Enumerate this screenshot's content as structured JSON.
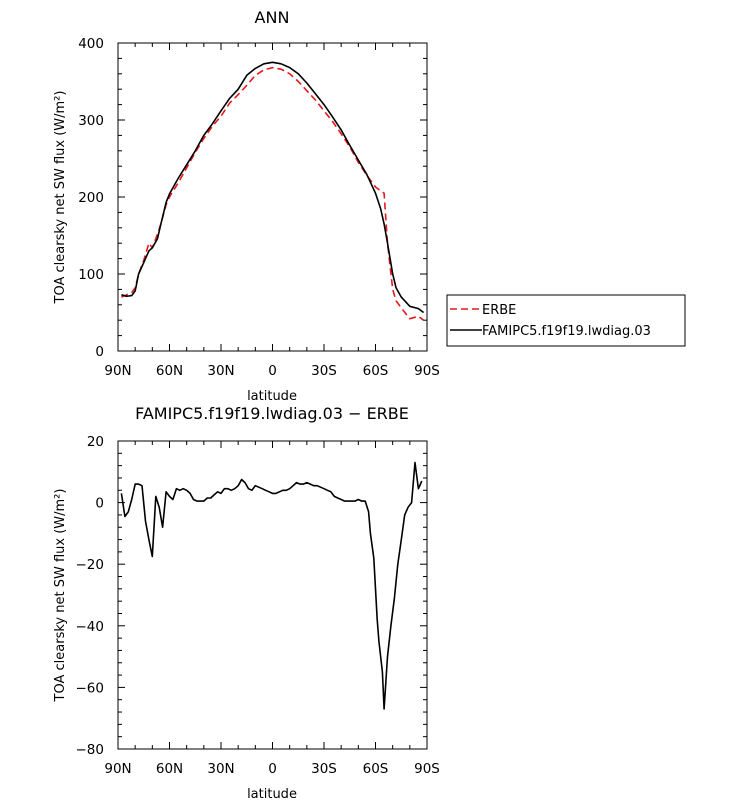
{
  "chart_data": [
    {
      "type": "line",
      "title": "ANN",
      "xlabel": "latitude",
      "ylabel": "TOA clearsky net SW flux (W/m²)",
      "xlim": [
        90,
        -90
      ],
      "ylim": [
        0,
        400
      ],
      "x_ticks": [
        "90N",
        "60N",
        "30N",
        "0",
        "30S",
        "60S",
        "90S"
      ],
      "y_ticks": [
        "0",
        "100",
        "200",
        "300",
        "400"
      ],
      "legend": "outside-right",
      "series": [
        {
          "name": "ERBE",
          "color": "#e41a1c",
          "style": "dashed",
          "x": [
            88,
            85,
            82,
            80,
            78,
            75,
            72,
            70,
            67,
            65,
            62,
            60,
            55,
            50,
            45,
            40,
            35,
            30,
            25,
            20,
            15,
            10,
            5,
            0,
            -5,
            -10,
            -15,
            -20,
            -25,
            -30,
            -35,
            -40,
            -45,
            -50,
            -55,
            -60,
            -63,
            -65,
            -67,
            -70,
            -72,
            -75,
            -80,
            -85,
            -88
          ],
          "y": [
            70,
            73,
            76,
            82,
            100,
            118,
            140,
            134,
            152,
            165,
            190,
            200,
            218,
            238,
            258,
            276,
            292,
            305,
            322,
            333,
            345,
            358,
            365,
            368,
            366,
            360,
            350,
            338,
            326,
            312,
            298,
            282,
            265,
            245,
            228,
            213,
            208,
            205,
            140,
            80,
            65,
            56,
            42,
            45,
            40
          ]
        },
        {
          "name": "FAMIPC5.f19f19.lwdiag.03",
          "color": "#000000",
          "style": "solid",
          "x": [
            88,
            85,
            82,
            80,
            78,
            75,
            72,
            70,
            67,
            65,
            62,
            60,
            55,
            50,
            45,
            40,
            35,
            30,
            25,
            20,
            15,
            10,
            5,
            0,
            -5,
            -10,
            -15,
            -20,
            -25,
            -30,
            -35,
            -40,
            -45,
            -50,
            -55,
            -60,
            -63,
            -65,
            -67,
            -70,
            -72,
            -75,
            -80,
            -85,
            -88
          ],
          "y": [
            73,
            71,
            72,
            78,
            100,
            115,
            130,
            134,
            146,
            165,
            193,
            204,
            224,
            242,
            260,
            280,
            295,
            312,
            328,
            340,
            358,
            367,
            373,
            375,
            373,
            368,
            360,
            348,
            334,
            320,
            304,
            287,
            267,
            248,
            229,
            205,
            185,
            165,
            140,
            100,
            82,
            70,
            58,
            55,
            50
          ]
        }
      ]
    },
    {
      "type": "line",
      "title": "FAMIPC5.f19f19.lwdiag.03 − ERBE",
      "xlabel": "latitude",
      "ylabel": "TOA clearsky net SW flux (W/m²)",
      "xlim": [
        90,
        -90
      ],
      "ylim": [
        -80,
        20
      ],
      "x_ticks": [
        "90N",
        "60N",
        "30N",
        "0",
        "30S",
        "60S",
        "90S"
      ],
      "y_ticks": [
        "−80",
        "−60",
        "−40",
        "−20",
        "0",
        "20"
      ],
      "series": [
        {
          "color": "#000000",
          "style": "solid",
          "x": [
            88,
            86,
            84,
            82,
            80,
            78,
            76,
            74,
            72,
            70,
            68,
            66,
            64,
            62,
            60,
            58,
            56,
            54,
            52,
            50,
            48,
            46,
            44,
            42,
            40,
            38,
            36,
            34,
            32,
            30,
            28,
            26,
            24,
            22,
            20,
            18,
            16,
            14,
            12,
            10,
            8,
            6,
            4,
            2,
            0,
            -2,
            -4,
            -6,
            -8,
            -10,
            -12,
            -14,
            -16,
            -18,
            -20,
            -22,
            -24,
            -26,
            -28,
            -30,
            -32,
            -34,
            -36,
            -38,
            -40,
            -42,
            -44,
            -46,
            -48,
            -50,
            -52,
            -54,
            -56,
            -57,
            -59,
            -61,
            -62,
            -64,
            -65,
            -67,
            -69,
            -71,
            -73,
            -75,
            -77,
            -79,
            -81,
            -83,
            -85,
            -87
          ],
          "y": [
            3,
            -4.5,
            -3,
            1,
            6,
            6,
            5.5,
            -6,
            -12,
            -17.5,
            2,
            -1.5,
            -8,
            3.5,
            2,
            1,
            4.5,
            4,
            4.5,
            4,
            3,
            1,
            0.5,
            0.5,
            0.5,
            1.5,
            1.5,
            2.5,
            3.5,
            3,
            4.5,
            4.5,
            4,
            4.5,
            5.5,
            7.5,
            6.5,
            4.5,
            4,
            5.5,
            5,
            4.5,
            4,
            3.5,
            3,
            3,
            3.5,
            4,
            4,
            4.5,
            5.5,
            6.5,
            6,
            6,
            6.5,
            6,
            5.5,
            5.5,
            5,
            4.5,
            4,
            3.5,
            2,
            1.5,
            1,
            0.5,
            0.5,
            0.5,
            0.5,
            1,
            0.5,
            0.5,
            -3,
            -10,
            -18,
            -38,
            -45,
            -55,
            -67,
            -50,
            -40,
            -31,
            -20,
            -12,
            -4,
            -1.5,
            0,
            13,
            4.5,
            7
          ]
        }
      ]
    }
  ]
}
